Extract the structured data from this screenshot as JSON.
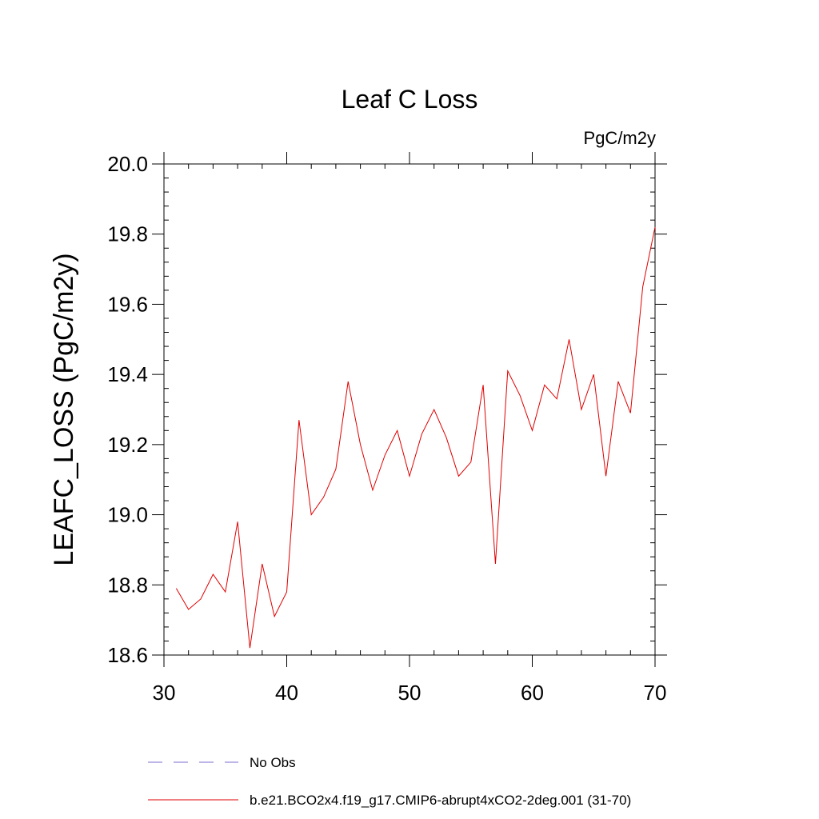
{
  "chart_data": {
    "type": "line",
    "title": "Leaf C Loss",
    "units": "PgC/m2y",
    "xlabel": "",
    "ylabel": "LEAFC_LOSS  (PgC/m2y)",
    "xlim": [
      30,
      70
    ],
    "ylim": [
      18.6,
      20.0
    ],
    "x_ticks": [
      30,
      40,
      50,
      60,
      70
    ],
    "y_ticks": [
      "18.6",
      "18.8",
      "19.0",
      "19.2",
      "19.4",
      "19.6",
      "19.8",
      "20.0"
    ],
    "grid": false,
    "legend_position": "bottom",
    "series": [
      {
        "name": "No Obs",
        "color": "#7b6fd0",
        "dash": "dashed",
        "x": [],
        "values": []
      },
      {
        "name": "b.e21.BCO2x4.f19_g17.CMIP6-abrupt4xCO2-2deg.001 (31-70)",
        "color": "#e00000",
        "dash": "solid",
        "x": [
          31,
          32,
          33,
          34,
          35,
          36,
          37,
          38,
          39,
          40,
          41,
          42,
          43,
          44,
          45,
          46,
          47,
          48,
          49,
          50,
          51,
          52,
          53,
          54,
          55,
          56,
          57,
          58,
          59,
          60,
          61,
          62,
          63,
          64,
          65,
          66,
          67,
          68,
          69,
          70
        ],
        "values": [
          18.79,
          18.73,
          18.76,
          18.83,
          18.78,
          18.98,
          18.62,
          18.86,
          18.71,
          18.78,
          19.27,
          19.0,
          19.05,
          19.13,
          19.38,
          19.2,
          19.07,
          19.17,
          19.24,
          19.11,
          19.23,
          19.3,
          19.22,
          19.11,
          19.15,
          19.37,
          18.86,
          19.41,
          19.34,
          19.24,
          19.37,
          19.33,
          19.5,
          19.3,
          19.4,
          19.11,
          19.38,
          19.29,
          19.65,
          19.82
        ]
      }
    ]
  }
}
